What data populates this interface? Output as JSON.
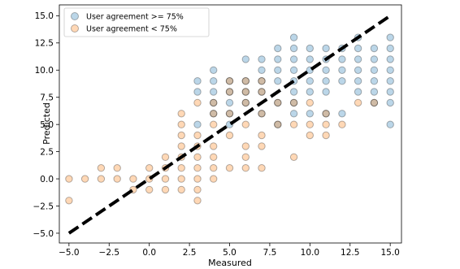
{
  "chart_data": {
    "type": "scatter",
    "title": "",
    "xlabel": "Measured",
    "ylabel": "Predicted",
    "xlim": [
      -5.6,
      15.7
    ],
    "ylim": [
      -5.9,
      16.0
    ],
    "xticks": [
      -5.0,
      -2.5,
      0.0,
      2.5,
      5.0,
      7.5,
      10.0,
      12.5,
      15.0
    ],
    "yticks": [
      -5.0,
      -2.5,
      0.0,
      2.5,
      5.0,
      7.5,
      10.0,
      12.5,
      15.0
    ],
    "xtick_labels": [
      "−5.0",
      "−2.5",
      "0.0",
      "2.5",
      "5.0",
      "7.5",
      "10.0",
      "12.5",
      "15.0"
    ],
    "ytick_labels": [
      "−5.0",
      "−2.5",
      "0.0",
      "2.5",
      "5.0",
      "7.5",
      "10.0",
      "12.5",
      "15.0"
    ],
    "grid": false,
    "legend_position": "top-left",
    "reference_line": {
      "x": [
        -5,
        15
      ],
      "y": [
        -5,
        15
      ],
      "color": "#000000",
      "style": "dashed"
    },
    "series": [
      {
        "name": "User agreement >= 75%",
        "color": "#1f77b4",
        "points": [
          [
            3,
            9
          ],
          [
            3,
            8
          ],
          [
            3,
            5
          ],
          [
            4,
            10
          ],
          [
            4,
            9
          ],
          [
            4,
            8
          ],
          [
            4,
            7
          ],
          [
            4,
            6
          ],
          [
            5,
            9
          ],
          [
            5,
            8
          ],
          [
            5,
            7
          ],
          [
            5,
            6
          ],
          [
            5,
            5
          ],
          [
            6,
            11
          ],
          [
            6,
            9
          ],
          [
            6,
            8
          ],
          [
            6,
            7
          ],
          [
            7,
            11
          ],
          [
            7,
            10
          ],
          [
            7,
            9
          ],
          [
            7,
            8
          ],
          [
            7,
            6
          ],
          [
            8,
            12
          ],
          [
            8,
            11
          ],
          [
            8,
            10
          ],
          [
            8,
            9
          ],
          [
            8,
            7
          ],
          [
            8,
            5
          ],
          [
            9,
            13
          ],
          [
            9,
            12
          ],
          [
            9,
            11
          ],
          [
            9,
            10
          ],
          [
            9,
            9
          ],
          [
            9,
            8
          ],
          [
            9,
            7
          ],
          [
            9,
            6
          ],
          [
            10,
            12
          ],
          [
            10,
            11
          ],
          [
            10,
            10
          ],
          [
            10,
            9
          ],
          [
            10,
            8
          ],
          [
            10,
            6
          ],
          [
            11,
            12
          ],
          [
            11,
            11
          ],
          [
            11,
            10
          ],
          [
            11,
            9
          ],
          [
            11,
            8
          ],
          [
            11,
            6
          ],
          [
            12,
            12
          ],
          [
            12,
            11
          ],
          [
            12,
            10
          ],
          [
            12,
            9
          ],
          [
            12,
            6
          ],
          [
            13,
            13
          ],
          [
            13,
            12
          ],
          [
            13,
            11
          ],
          [
            13,
            10
          ],
          [
            13,
            9
          ],
          [
            13,
            8
          ],
          [
            14,
            12
          ],
          [
            14,
            11
          ],
          [
            14,
            10
          ],
          [
            14,
            9
          ],
          [
            14,
            8
          ],
          [
            14,
            7
          ],
          [
            15,
            13
          ],
          [
            15,
            12
          ],
          [
            15,
            11
          ],
          [
            15,
            10
          ],
          [
            15,
            9
          ],
          [
            15,
            8
          ],
          [
            15,
            7
          ],
          [
            15,
            5
          ]
        ]
      },
      {
        "name": "User agreement < 75%",
        "color": "#ff7f0e",
        "points": [
          [
            -5,
            0
          ],
          [
            -5,
            -2
          ],
          [
            -4,
            0
          ],
          [
            -3,
            1
          ],
          [
            -3,
            0
          ],
          [
            -2,
            1
          ],
          [
            -2,
            0
          ],
          [
            -1,
            0
          ],
          [
            -1,
            -1
          ],
          [
            0,
            1
          ],
          [
            0,
            0
          ],
          [
            0,
            -1
          ],
          [
            1,
            2
          ],
          [
            1,
            1
          ],
          [
            1,
            0
          ],
          [
            1,
            -1
          ],
          [
            2,
            6
          ],
          [
            2,
            5
          ],
          [
            2,
            4
          ],
          [
            2,
            3
          ],
          [
            2,
            2
          ],
          [
            2,
            1
          ],
          [
            2,
            0
          ],
          [
            2,
            -1
          ],
          [
            3,
            7
          ],
          [
            3,
            4
          ],
          [
            3,
            3
          ],
          [
            3,
            2
          ],
          [
            3,
            1
          ],
          [
            3,
            0
          ],
          [
            3,
            -1
          ],
          [
            3,
            -2
          ],
          [
            4,
            7
          ],
          [
            4,
            6
          ],
          [
            4,
            5
          ],
          [
            4,
            3
          ],
          [
            4,
            2
          ],
          [
            4,
            1
          ],
          [
            4,
            0
          ],
          [
            5,
            9
          ],
          [
            5,
            8
          ],
          [
            5,
            6
          ],
          [
            5,
            4
          ],
          [
            5,
            1
          ],
          [
            6,
            9
          ],
          [
            6,
            8
          ],
          [
            6,
            7
          ],
          [
            6,
            5
          ],
          [
            6,
            3
          ],
          [
            6,
            2
          ],
          [
            6,
            1
          ],
          [
            7,
            9
          ],
          [
            7,
            8
          ],
          [
            7,
            6
          ],
          [
            7,
            4
          ],
          [
            7,
            3
          ],
          [
            7,
            1
          ],
          [
            8,
            7
          ],
          [
            8,
            5
          ],
          [
            9,
            7
          ],
          [
            9,
            5
          ],
          [
            9,
            2
          ],
          [
            10,
            7
          ],
          [
            10,
            5
          ],
          [
            10,
            4
          ],
          [
            11,
            6
          ],
          [
            11,
            5
          ],
          [
            11,
            4
          ],
          [
            12,
            5
          ],
          [
            13,
            7
          ],
          [
            14,
            7
          ]
        ]
      }
    ]
  }
}
